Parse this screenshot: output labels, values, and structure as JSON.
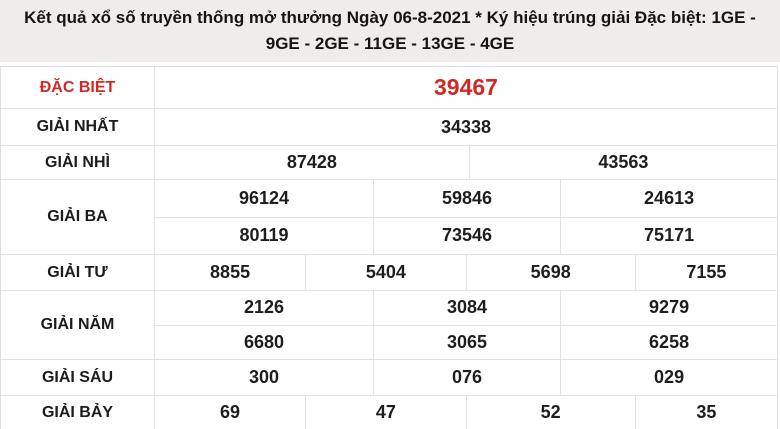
{
  "header": {
    "title_line1": "Kết quả xổ số truyền thống mở thưởng Ngày 06-8-2021 * Ký hiệu trúng giải Đặc biệt: 1GE -",
    "title_line2": "9GE - 2GE - 11GE - 13GE - 4GE"
  },
  "colors": {
    "accent_red": "#cf2a25",
    "header_bg": "#f1ecec",
    "border": "#e3e1e1",
    "text": "#1e1e1e"
  },
  "table": {
    "rows": [
      {
        "label": "ĐẶC BIỆT",
        "values": [
          "39467"
        ],
        "highlight": true
      },
      {
        "label": "GIẢI NHẤT",
        "values": [
          "34338"
        ]
      },
      {
        "label": "GIẢI NHÌ",
        "values": [
          "87428",
          "43563"
        ]
      },
      {
        "label": "GIẢI BA",
        "values_rows": [
          [
            "96124",
            "59846",
            "24613"
          ],
          [
            "80119",
            "73546",
            "75171"
          ]
        ]
      },
      {
        "label": "GIẢI TƯ",
        "values": [
          "8855",
          "5404",
          "5698",
          "7155"
        ]
      },
      {
        "label": "GIẢI NĂM",
        "values_rows": [
          [
            "2126",
            "3084",
            "9279"
          ],
          [
            "6680",
            "3065",
            "6258"
          ]
        ]
      },
      {
        "label": "GIẢI SÁU",
        "values": [
          "300",
          "076",
          "029"
        ]
      },
      {
        "label": "GIẢI BẢY",
        "values": [
          "69",
          "47",
          "52",
          "35"
        ]
      }
    ]
  }
}
